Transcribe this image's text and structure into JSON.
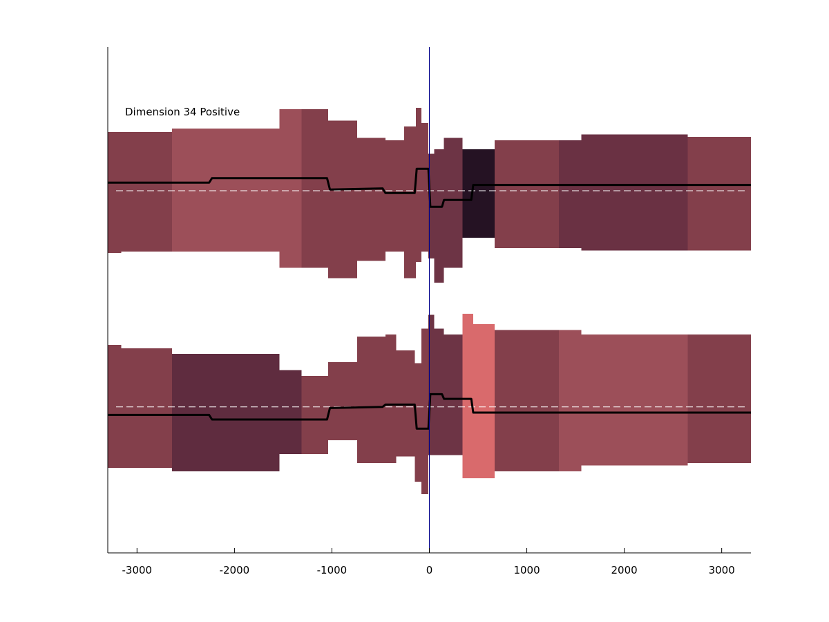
{
  "chart_data": {
    "type": "area",
    "title": "",
    "xlabel": "",
    "ylabel": "",
    "xlim": [
      -3300,
      3300
    ],
    "ylim": [
      -2.2,
      2.2
    ],
    "grid": false,
    "legend": "none",
    "annotation": "Dimension 34 Positive",
    "x_ticks": [
      -3000,
      -2000,
      -1000,
      0,
      1000,
      2000,
      3000
    ],
    "x_tick_labels": [
      "-3000",
      "-2000",
      "-1000",
      "0",
      "1000",
      "2000",
      "3000"
    ],
    "vertical_line_x": 0,
    "vertical_line_color": "#00008b",
    "mean_line_color": "#000000",
    "zero_line_color": "#ffffff",
    "series": [
      {
        "baseline": 0.95,
        "segments": [
          {
            "x0": -3300,
            "x1": -3160,
            "lo": 0.41,
            "hi": 1.46,
            "color": "#833f4b"
          },
          {
            "x0": -3160,
            "x1": -2640,
            "lo": 0.42,
            "hi": 1.46,
            "color": "#833f4b"
          },
          {
            "x0": -2640,
            "x1": -1540,
            "lo": 0.42,
            "hi": 1.49,
            "color": "#9c4f59"
          },
          {
            "x0": -1540,
            "x1": -1310,
            "lo": 0.28,
            "hi": 1.66,
            "color": "#9c4f59"
          },
          {
            "x0": -1310,
            "x1": -1040,
            "lo": 0.28,
            "hi": 1.66,
            "color": "#833f4b"
          },
          {
            "x0": -1040,
            "x1": -740,
            "lo": 0.19,
            "hi": 1.56,
            "color": "#833f4b"
          },
          {
            "x0": -740,
            "x1": -450,
            "lo": 0.34,
            "hi": 1.41,
            "color": "#833f4b"
          },
          {
            "x0": -450,
            "x1": -260,
            "lo": 0.42,
            "hi": 1.39,
            "color": "#833f4b"
          },
          {
            "x0": -260,
            "x1": -140,
            "lo": 0.19,
            "hi": 1.51,
            "color": "#833f4b"
          },
          {
            "x0": -140,
            "x1": -80,
            "lo": 0.33,
            "hi": 1.67,
            "color": "#833f4b"
          },
          {
            "x0": -80,
            "x1": -10,
            "lo": 0.42,
            "hi": 1.54,
            "color": "#833f4b"
          },
          {
            "x0": -10,
            "x1": 50,
            "lo": 0.36,
            "hi": 1.27,
            "color": "#6d3445"
          },
          {
            "x0": 50,
            "x1": 150,
            "lo": 0.15,
            "hi": 1.31,
            "color": "#6d3445"
          },
          {
            "x0": 150,
            "x1": 340,
            "lo": 0.28,
            "hi": 1.41,
            "color": "#6d3445"
          },
          {
            "x0": 340,
            "x1": 670,
            "lo": 0.54,
            "hi": 1.31,
            "color": "#251223"
          },
          {
            "x0": 670,
            "x1": 1330,
            "lo": 0.45,
            "hi": 1.39,
            "color": "#833f4b"
          },
          {
            "x0": 1330,
            "x1": 1560,
            "lo": 0.45,
            "hi": 1.39,
            "color": "#6a3143"
          },
          {
            "x0": 1560,
            "x1": 2260,
            "lo": 0.43,
            "hi": 1.44,
            "color": "#6a3143"
          },
          {
            "x0": 2260,
            "x1": 2650,
            "lo": 0.43,
            "hi": 1.44,
            "color": "#6a3143"
          },
          {
            "x0": 2650,
            "x1": 3300,
            "lo": 0.43,
            "hi": 1.42,
            "color": "#833f4b"
          }
        ],
        "mean": [
          {
            "x": -3300,
            "y": 1.02
          },
          {
            "x": -2260,
            "y": 1.02
          },
          {
            "x": -2230,
            "y": 1.06
          },
          {
            "x": -1050,
            "y": 1.06
          },
          {
            "x": -1020,
            "y": 0.96
          },
          {
            "x": -480,
            "y": 0.97
          },
          {
            "x": -450,
            "y": 0.93
          },
          {
            "x": -150,
            "y": 0.93
          },
          {
            "x": -130,
            "y": 1.14
          },
          {
            "x": -10,
            "y": 1.14
          },
          {
            "x": 10,
            "y": 0.81
          },
          {
            "x": 130,
            "y": 0.81
          },
          {
            "x": 150,
            "y": 0.87
          },
          {
            "x": 430,
            "y": 0.87
          },
          {
            "x": 450,
            "y": 1.0
          },
          {
            "x": 3300,
            "y": 1.0
          }
        ]
      },
      {
        "baseline": -0.93,
        "segments": [
          {
            "x0": -3300,
            "x1": -3160,
            "lo": -1.46,
            "hi": -0.39,
            "color": "#833f4b"
          },
          {
            "x0": -3160,
            "x1": -2640,
            "lo": -1.46,
            "hi": -0.42,
            "color": "#833f4b"
          },
          {
            "x0": -2640,
            "x1": -1540,
            "lo": -1.49,
            "hi": -0.47,
            "color": "#5f2c3f"
          },
          {
            "x0": -1540,
            "x1": -1310,
            "lo": -1.34,
            "hi": -0.61,
            "color": "#5f2c3f"
          },
          {
            "x0": -1310,
            "x1": -1040,
            "lo": -1.34,
            "hi": -0.66,
            "color": "#833f4b"
          },
          {
            "x0": -1040,
            "x1": -740,
            "lo": -1.22,
            "hi": -0.54,
            "color": "#833f4b"
          },
          {
            "x0": -740,
            "x1": -450,
            "lo": -1.42,
            "hi": -0.32,
            "color": "#833f4b"
          },
          {
            "x0": -450,
            "x1": -340,
            "lo": -1.42,
            "hi": -0.3,
            "color": "#833f4b"
          },
          {
            "x0": -340,
            "x1": -150,
            "lo": -1.36,
            "hi": -0.44,
            "color": "#833f4b"
          },
          {
            "x0": -150,
            "x1": -80,
            "lo": -1.58,
            "hi": -0.55,
            "color": "#833f4b"
          },
          {
            "x0": -80,
            "x1": -10,
            "lo": -1.69,
            "hi": -0.25,
            "color": "#833f4b"
          },
          {
            "x0": -10,
            "x1": 50,
            "lo": -1.35,
            "hi": -0.13,
            "color": "#6d3445"
          },
          {
            "x0": 50,
            "x1": 150,
            "lo": -1.35,
            "hi": -0.25,
            "color": "#6d3445"
          },
          {
            "x0": 150,
            "x1": 340,
            "lo": -1.35,
            "hi": -0.3,
            "color": "#6d3445"
          },
          {
            "x0": 340,
            "x1": 450,
            "lo": -1.55,
            "hi": -0.12,
            "color": "#d96a6c"
          },
          {
            "x0": 450,
            "x1": 670,
            "lo": -1.55,
            "hi": -0.21,
            "color": "#d96a6c"
          },
          {
            "x0": 670,
            "x1": 1330,
            "lo": -1.49,
            "hi": -0.26,
            "color": "#833f4b"
          },
          {
            "x0": 1330,
            "x1": 1560,
            "lo": -1.49,
            "hi": -0.26,
            "color": "#9c4f59"
          },
          {
            "x0": 1560,
            "x1": 2260,
            "lo": -1.44,
            "hi": -0.3,
            "color": "#9c4f59"
          },
          {
            "x0": 2260,
            "x1": 2650,
            "lo": -1.44,
            "hi": -0.3,
            "color": "#9c4f59"
          },
          {
            "x0": 2650,
            "x1": 3300,
            "lo": -1.42,
            "hi": -0.3,
            "color": "#833f4b"
          }
        ],
        "mean": [
          {
            "x": -3300,
            "y": -1.0
          },
          {
            "x": -2260,
            "y": -1.0
          },
          {
            "x": -2230,
            "y": -1.04
          },
          {
            "x": -1050,
            "y": -1.04
          },
          {
            "x": -1020,
            "y": -0.94
          },
          {
            "x": -480,
            "y": -0.93
          },
          {
            "x": -450,
            "y": -0.91
          },
          {
            "x": -150,
            "y": -0.91
          },
          {
            "x": -130,
            "y": -1.12
          },
          {
            "x": -10,
            "y": -1.12
          },
          {
            "x": 10,
            "y": -0.82
          },
          {
            "x": 130,
            "y": -0.82
          },
          {
            "x": 150,
            "y": -0.86
          },
          {
            "x": 430,
            "y": -0.86
          },
          {
            "x": 450,
            "y": -0.98
          },
          {
            "x": 3300,
            "y": -0.98
          }
        ]
      }
    ]
  }
}
